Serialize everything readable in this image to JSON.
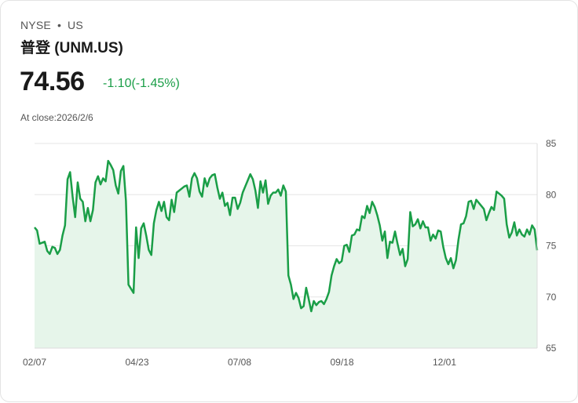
{
  "header": {
    "exchange": "NYSE",
    "separator": "•",
    "region": "US",
    "title": "普登 (UNM.US)",
    "price": "74.56",
    "change": "-1.10(-1.45%)",
    "close_note": "At close:2026/2/6"
  },
  "colors": {
    "line": "#1a9e47",
    "fill": "#e6f5ea",
    "change": "#1a9e47",
    "grid": "#e6e6e6"
  },
  "chart_data": {
    "type": "area",
    "title": "",
    "xlabel": "",
    "ylabel": "",
    "y_axis_position": "right",
    "grid": true,
    "ylim": [
      65,
      85
    ],
    "yticks": [
      85,
      80,
      75,
      70,
      65
    ],
    "xticks": [
      "02/07",
      "04/23",
      "07/08",
      "09/18",
      "12/01"
    ],
    "series": [
      {
        "values": [
          76.8,
          76.5,
          75.2,
          75.3,
          75.4,
          74.5,
          74.2,
          74.9,
          74.8,
          74.2,
          74.6,
          76.0,
          77.0,
          81.5,
          82.2,
          79.8,
          77.8,
          81.2,
          79.6,
          79.3,
          77.4,
          78.7,
          77.4,
          78.5,
          81.2,
          81.8,
          81.0,
          81.6,
          81.3,
          83.3,
          82.9,
          82.4,
          80.9,
          80.1,
          82.3,
          82.8,
          79.4,
          71.2,
          70.8,
          70.4,
          76.8,
          73.8,
          76.7,
          77.2,
          76.0,
          74.6,
          74.1,
          77.2,
          78.5,
          79.3,
          78.4,
          79.3,
          77.8,
          77.5,
          79.5,
          78.3,
          80.2,
          80.4,
          80.6,
          80.8,
          80.9,
          79.8,
          81.6,
          82.1,
          81.6,
          80.3,
          79.8,
          81.6,
          80.8,
          81.6,
          81.9,
          82.0,
          80.7,
          79.6,
          80.2,
          78.9,
          79.2,
          78.0,
          79.7,
          79.7,
          78.6,
          79.2,
          80.2,
          80.8,
          81.4,
          82.0,
          81.5,
          80.4,
          78.7,
          81.3,
          80.2,
          81.4,
          79.1,
          79.9,
          80.2,
          80.2,
          80.5,
          79.9,
          80.9,
          80.3,
          72.1,
          71.2,
          69.8,
          70.4,
          69.9,
          68.9,
          69.1,
          70.9,
          69.8,
          68.6,
          69.6,
          69.2,
          69.5,
          69.6,
          69.3,
          69.8,
          70.5,
          72.1,
          73.0,
          73.7,
          73.3,
          73.5,
          75.0,
          75.1,
          74.4,
          76.0,
          76.1,
          76.6,
          76.5,
          77.9,
          77.7,
          78.9,
          78.2,
          79.3,
          78.8,
          78.0,
          77.0,
          75.5,
          76.4,
          73.8,
          75.4,
          75.3,
          76.4,
          75.2,
          74.1,
          74.7,
          73.0,
          73.7,
          78.3,
          76.9,
          77.1,
          77.6,
          76.7,
          77.4,
          76.8,
          76.8,
          75.5,
          76.1,
          75.7,
          76.5,
          76.4,
          74.9,
          73.8,
          73.2,
          73.8,
          72.8,
          73.6,
          75.6,
          77.1,
          77.2,
          77.9,
          79.3,
          79.4,
          78.6,
          79.5,
          79.2,
          78.9,
          78.6,
          77.5,
          78.2,
          78.8,
          78.5,
          80.3,
          80.1,
          79.9,
          79.6,
          77.1,
          75.8,
          76.3,
          77.3,
          76.0,
          76.6,
          76.1,
          75.9,
          76.6,
          76.1,
          77.0,
          76.6,
          74.56
        ]
      }
    ]
  }
}
